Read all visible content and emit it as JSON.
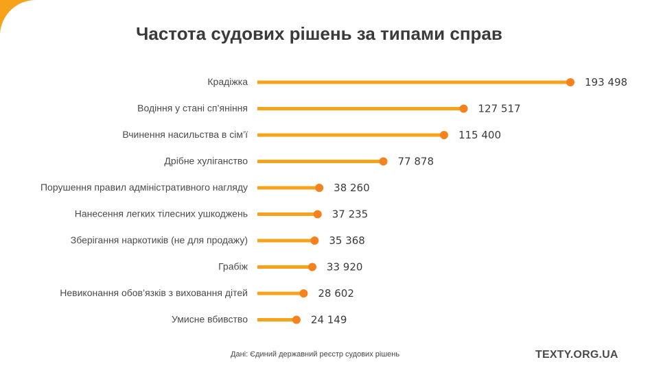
{
  "title": "Частота судових рішень за типами справ",
  "source": "Дані: Єдиний державний реєстр судових рішень",
  "brand": "TEXTY.ORG.UA",
  "colors": {
    "bar": "#f7a21b",
    "dot": "#f5821f",
    "corner": "#f7a21b"
  },
  "chart_data": {
    "type": "bar",
    "orientation": "horizontal",
    "title": "Частота судових рішень за типами справ",
    "categories": [
      "Крадіжка",
      "Водіння у стані сп’яніння",
      "Вчинення насильства в сім’ї",
      "Дрібне хуліганство",
      "Порушення правил адміністративного нагляду",
      "Нанесення легких тілесних ушкоджень",
      "Зберігання наркотиків (не для продажу)",
      "Грабіж",
      "Невиконання обов’язків з виховання дітей",
      "Умисне вбивство"
    ],
    "values": [
      193498,
      127517,
      115400,
      77878,
      38260,
      37235,
      35368,
      33920,
      28602,
      24149
    ],
    "value_labels": [
      "193 498",
      "127 517",
      "115 400",
      "77 878",
      "38 260",
      "37 235",
      "35 368",
      "33 920",
      "28 602",
      "24 149"
    ],
    "xlim": [
      0,
      193498
    ],
    "grid": false,
    "legend": "none"
  }
}
